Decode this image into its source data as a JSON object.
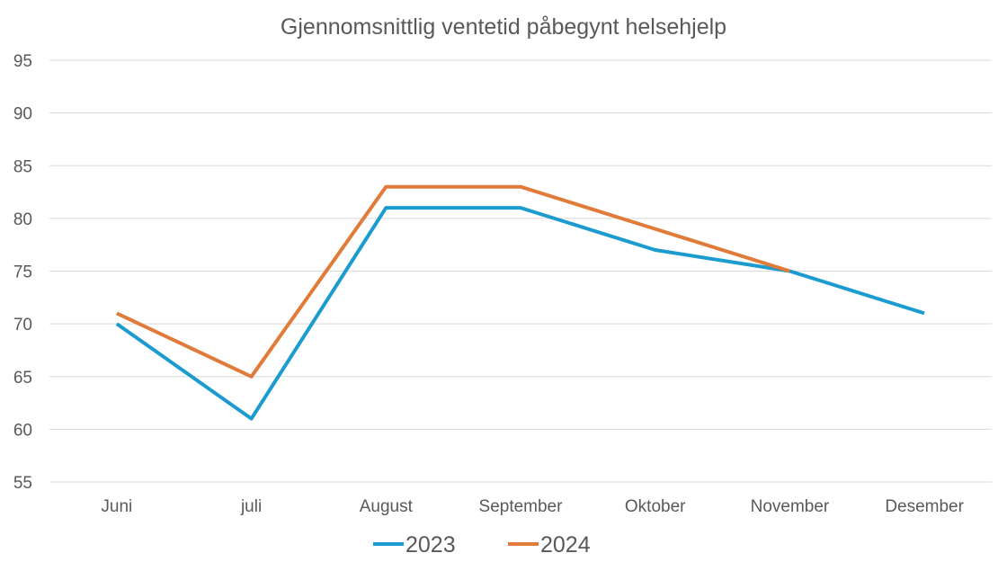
{
  "chart_data": {
    "type": "line",
    "title": "Gjennomsnittlig ventetid påbegynt helsehjelp",
    "xlabel": "",
    "ylabel": "",
    "categories": [
      "Juni",
      "juli",
      "August",
      "September",
      "Oktober",
      "November",
      "Desember"
    ],
    "ylim": [
      55,
      95
    ],
    "yticks": [
      55,
      60,
      65,
      70,
      75,
      80,
      85,
      90,
      95
    ],
    "grid": true,
    "legend_position": "bottom",
    "series": [
      {
        "name": "2023",
        "color": "#1b9bcf",
        "values": [
          70,
          61,
          81,
          81,
          77,
          75,
          71
        ]
      },
      {
        "name": "2024",
        "color": "#e07b39",
        "values": [
          71,
          65,
          83,
          83,
          79,
          75,
          null
        ]
      }
    ]
  }
}
